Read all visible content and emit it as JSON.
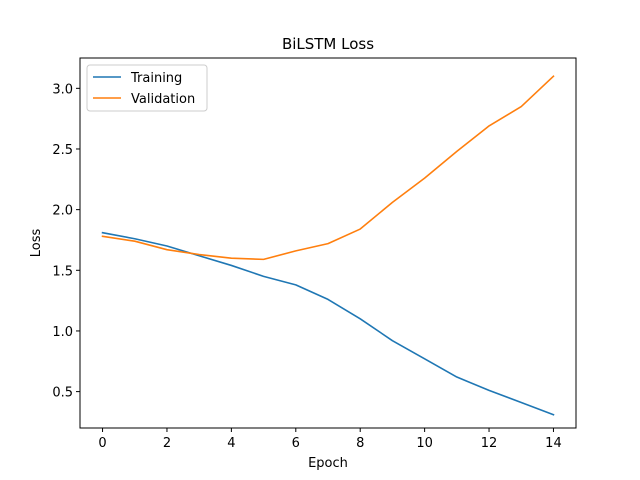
{
  "chart_data": {
    "type": "line",
    "title": "BiLSTM Loss",
    "xlabel": "Epoch",
    "ylabel": "Loss",
    "x": [
      0,
      1,
      2,
      3,
      4,
      5,
      6,
      7,
      8,
      9,
      10,
      11,
      12,
      13,
      14
    ],
    "xlim": [
      -0.7,
      14.7
    ],
    "ylim": [
      0.2,
      3.25
    ],
    "xticks": [
      0,
      2,
      4,
      6,
      8,
      10,
      12,
      14
    ],
    "yticks": [
      0.5,
      1.0,
      1.5,
      2.0,
      2.5,
      3.0
    ],
    "ytick_labels": [
      "0.5",
      "1.0",
      "1.5",
      "2.0",
      "2.5",
      "3.0"
    ],
    "grid": false,
    "legend_position": "top-left",
    "series": [
      {
        "name": "Training",
        "color": "#1f77b4",
        "values": [
          1.81,
          1.76,
          1.7,
          1.62,
          1.54,
          1.45,
          1.38,
          1.26,
          1.1,
          0.92,
          0.77,
          0.62,
          0.51,
          0.41,
          0.31
        ]
      },
      {
        "name": "Validation",
        "color": "#ff7f0e",
        "values": [
          1.78,
          1.74,
          1.67,
          1.63,
          1.6,
          1.59,
          1.66,
          1.72,
          1.84,
          2.06,
          2.26,
          2.48,
          2.69,
          2.85,
          3.1
        ]
      }
    ]
  }
}
